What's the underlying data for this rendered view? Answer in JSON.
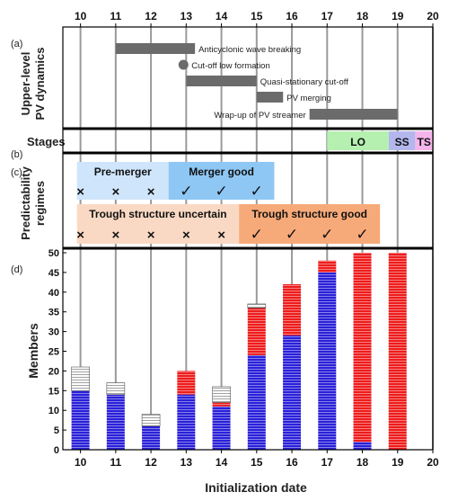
{
  "top_axis": {
    "ticks": [
      "10",
      "11",
      "12",
      "13",
      "14",
      "15",
      "16",
      "17",
      "18",
      "19",
      "20"
    ]
  },
  "panels": {
    "a": {
      "letter": "(a)",
      "ylabel_line1": "Upper-level",
      "ylabel_line2": "PV dynamics",
      "events": [
        {
          "label": "Anticyclonic wave breaking",
          "start": 11.0,
          "end": 13.25,
          "row": 0,
          "kind": "bar"
        },
        {
          "label": "Cut-off low formation",
          "start": 13.05,
          "end": 13.05,
          "row": 1,
          "kind": "dot"
        },
        {
          "label": "Quasi-stationary cut-off",
          "start": 13.0,
          "end": 15.0,
          "row": 2,
          "kind": "bar"
        },
        {
          "label": "PV merging",
          "start": 15.0,
          "end": 15.75,
          "row": 3,
          "kind": "bar"
        },
        {
          "label": "Wrap-up of PV streamer",
          "start": 16.5,
          "end": 19.0,
          "row": 4,
          "kind": "bar"
        }
      ]
    },
    "b": {
      "letter": "(b)",
      "label": "Stages",
      "stages": [
        {
          "name": "LO",
          "start": 17.0,
          "end": 18.75,
          "color": "#b5f0b1"
        },
        {
          "name": "SS",
          "start": 18.75,
          "end": 19.5,
          "color": "#b4b6ee"
        },
        {
          "name": "TS",
          "start": 19.5,
          "end": 20.0,
          "color": "#f5b4ea"
        }
      ]
    },
    "c": {
      "letter": "(c)",
      "ylabel_line1": "Predictability",
      "ylabel_line2": "regimes",
      "regimes": [
        {
          "name": "Pre-merger",
          "start": 9.9,
          "end": 12.5,
          "row": 0,
          "color": "#cfe5fb"
        },
        {
          "name": "Merger good",
          "start": 12.5,
          "end": 15.5,
          "row": 0,
          "color": "#8ec7f4"
        },
        {
          "name": "Trough structure uncertain",
          "start": 9.9,
          "end": 14.5,
          "row": 1,
          "color": "#fad9c4"
        },
        {
          "name": "Trough structure good",
          "start": 14.5,
          "end": 18.5,
          "row": 1,
          "color": "#f7aa79"
        }
      ],
      "marks_row0": [
        {
          "x": 10,
          "mark": "×"
        },
        {
          "x": 11,
          "mark": "×"
        },
        {
          "x": 12,
          "mark": "×"
        },
        {
          "x": 13,
          "mark": "✓"
        },
        {
          "x": 14,
          "mark": "✓"
        },
        {
          "x": 15,
          "mark": "✓"
        }
      ],
      "marks_row1": [
        {
          "x": 10,
          "mark": "×"
        },
        {
          "x": 11,
          "mark": "×"
        },
        {
          "x": 12,
          "mark": "×"
        },
        {
          "x": 13,
          "mark": "×"
        },
        {
          "x": 14,
          "mark": "×"
        },
        {
          "x": 15,
          "mark": "✓"
        },
        {
          "x": 16,
          "mark": "✓"
        },
        {
          "x": 17,
          "mark": "✓"
        },
        {
          "x": 18,
          "mark": "✓"
        }
      ]
    },
    "d": {
      "letter": "(d)"
    }
  },
  "chart_data": {
    "type": "bar",
    "categories": [
      "10",
      "11",
      "12",
      "13",
      "14",
      "15",
      "16",
      "17",
      "18",
      "19"
    ],
    "xlabel": "Initialization date",
    "ylabel": "Members",
    "xlim": [
      9.5,
      20
    ],
    "ylim": [
      0,
      50
    ],
    "yticks": [
      0,
      5,
      10,
      15,
      20,
      25,
      30,
      35,
      40,
      45,
      50
    ],
    "xticks": [
      "10",
      "11",
      "12",
      "13",
      "14",
      "15",
      "16",
      "17",
      "18",
      "19",
      "20"
    ],
    "stacked": true,
    "series": [
      {
        "values": [
          15,
          14,
          6,
          14,
          11,
          24,
          29,
          45,
          2,
          0
        ],
        "color": "#2a20d8"
      },
      {
        "values": [
          0,
          0,
          0,
          6,
          1,
          12,
          13,
          3,
          48,
          50
        ],
        "color": "#ee1c1c"
      },
      {
        "values": [
          6,
          3,
          3,
          0,
          4,
          1,
          0,
          0,
          0,
          0
        ],
        "color": "#ffffff"
      }
    ]
  },
  "colors": {
    "event_bar": "#6b6b6b",
    "vline": "#9a9a9a",
    "blue": "#2a20d8",
    "red": "#ee1c1c"
  }
}
